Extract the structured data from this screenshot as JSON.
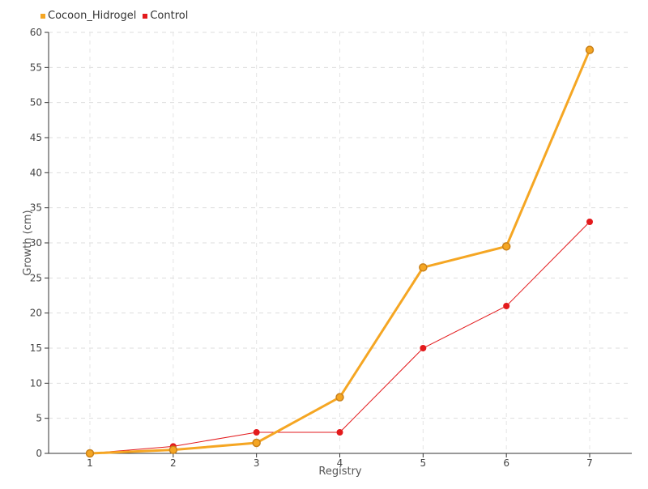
{
  "chart_data": {
    "type": "line",
    "title": "",
    "xlabel": "Registry",
    "ylabel": "Growth (cm)",
    "categories": [
      "1",
      "2",
      "3",
      "4",
      "5",
      "6",
      "7"
    ],
    "ylim": [
      0,
      60
    ],
    "yticks": [
      0,
      5,
      10,
      15,
      20,
      25,
      30,
      35,
      40,
      45,
      50,
      55,
      60
    ],
    "grid": true,
    "legend_position": "top-left",
    "series": [
      {
        "name": "Cocoon_Hidrogel",
        "color": "#f5a623",
        "values": [
          0,
          0.5,
          1.5,
          8,
          26.5,
          29.5,
          57.5
        ]
      },
      {
        "name": "Control",
        "color": "#e31a1c",
        "values": [
          0,
          1,
          3,
          3,
          15,
          21,
          33
        ]
      }
    ]
  }
}
